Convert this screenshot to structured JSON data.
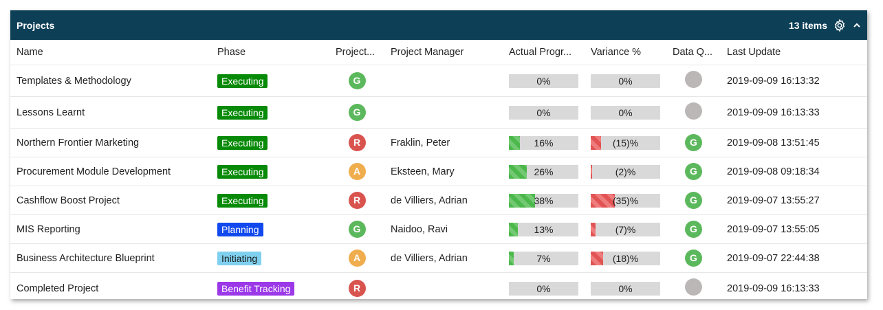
{
  "panel": {
    "title": "Projects",
    "item_count": "13 items"
  },
  "columns": [
    "Name",
    "Phase",
    "Project...",
    "Project Manager",
    "Actual Progr...",
    "Variance %",
    "Data Q...",
    "Last Update"
  ],
  "rows": [
    {
      "name": "Templates & Methodology",
      "phase": "Executing",
      "phase_class": "Executing",
      "health": "G",
      "manager": "",
      "progress_label": "0%",
      "progress": 0,
      "variance_label": "0%",
      "variance": 0,
      "dq": "",
      "dq_class": "N",
      "updated": "2019-09-09 16:13:32"
    },
    {
      "name": "Lessons Learnt",
      "phase": "Executing",
      "phase_class": "Executing",
      "health": "G",
      "manager": "",
      "progress_label": "0%",
      "progress": 0,
      "variance_label": "0%",
      "variance": 0,
      "dq": "",
      "dq_class": "N",
      "updated": "2019-09-09 16:13:33"
    },
    {
      "name": "Northern Frontier Marketing",
      "phase": "Executing",
      "phase_class": "Executing",
      "health": "R",
      "manager": "Fraklin, Peter",
      "progress_label": "16%",
      "progress": 16,
      "variance_label": "(15)%",
      "variance": -15,
      "dq": "G",
      "dq_class": "G",
      "updated": "2019-09-08 13:51:45"
    },
    {
      "name": "Procurement Module Development",
      "phase": "Executing",
      "phase_class": "Executing",
      "health": "A",
      "manager": "Eksteen, Mary",
      "progress_label": "26%",
      "progress": 26,
      "variance_label": "(2)%",
      "variance": -2,
      "dq": "G",
      "dq_class": "G",
      "updated": "2019-09-08 09:18:34"
    },
    {
      "name": "Cashflow Boost Project",
      "phase": "Executing",
      "phase_class": "Executing",
      "health": "R",
      "manager": "de Villiers, Adrian",
      "progress_label": "38%",
      "progress": 38,
      "variance_label": "(35)%",
      "variance": -35,
      "dq": "G",
      "dq_class": "G",
      "updated": "2019-09-07 13:55:27"
    },
    {
      "name": "MIS Reporting",
      "phase": "Planning",
      "phase_class": "Planning",
      "health": "G",
      "manager": "Naidoo, Ravi",
      "progress_label": "13%",
      "progress": 13,
      "variance_label": "(7)%",
      "variance": -7,
      "dq": "G",
      "dq_class": "G",
      "updated": "2019-09-07 13:55:05"
    },
    {
      "name": "Business Architecture Blueprint",
      "phase": "Initiating",
      "phase_class": "Initiating",
      "health": "A",
      "manager": "de Villiers, Adrian",
      "progress_label": "7%",
      "progress": 7,
      "variance_label": "(18)%",
      "variance": -18,
      "dq": "G",
      "dq_class": "G",
      "updated": "2019-09-07 22:44:38"
    },
    {
      "name": "Completed Project",
      "phase": "Benefit Tracking",
      "phase_class": "Benefit",
      "health": "R",
      "manager": "",
      "progress_label": "0%",
      "progress": 0,
      "variance_label": "0%",
      "variance": 0,
      "dq": "",
      "dq_class": "N",
      "updated": "2019-09-09 16:13:33"
    }
  ],
  "icons": {
    "settings": "gear-icon",
    "collapse": "chevron-up-icon"
  },
  "colors": {
    "header_bg": "#0d3f57",
    "green": "#5cb85c",
    "red": "#d9534f",
    "amber": "#f0ad4e",
    "grey": "#bbb7b7"
  }
}
